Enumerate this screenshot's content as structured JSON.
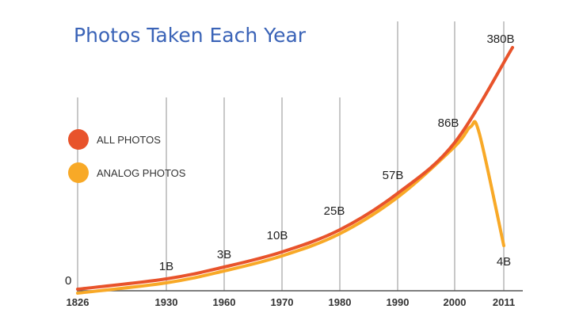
{
  "chart_data": {
    "type": "line",
    "title": "Photos Taken Each Year",
    "x": [
      1826,
      1930,
      1960,
      1970,
      1980,
      1990,
      2000,
      2011
    ],
    "x_tick_labels": [
      "1826",
      "1930",
      "1960",
      "1970",
      "1980",
      "1990",
      "2000",
      "2011"
    ],
    "series": [
      {
        "name": "ALL PHOTOS",
        "color": "#e8532b",
        "points": [
          {
            "x": 1826,
            "y": 0
          },
          {
            "x": 1930,
            "y": 1
          },
          {
            "x": 1960,
            "y": 3
          },
          {
            "x": 1970,
            "y": 10
          },
          {
            "x": 1980,
            "y": 25
          },
          {
            "x": 1990,
            "y": 57
          },
          {
            "x": 2000,
            "y": 86
          },
          {
            "x": 2011,
            "y": 380
          }
        ]
      },
      {
        "name": "ANALOG PHOTOS",
        "color": "#f8a927",
        "points": [
          {
            "x": 1826,
            "y": 0
          },
          {
            "x": 1930,
            "y": 1
          },
          {
            "x": 1960,
            "y": 3
          },
          {
            "x": 1970,
            "y": 10
          },
          {
            "x": 1980,
            "y": 25
          },
          {
            "x": 1990,
            "y": 57
          },
          {
            "x": 2000,
            "y": 86
          },
          {
            "x": 2011,
            "y": 4
          }
        ]
      }
    ],
    "data_labels": [
      "0",
      "1B",
      "3B",
      "10B",
      "25B",
      "57B",
      "86B",
      "380B",
      "4B"
    ],
    "legend_placement": "left",
    "grid": "vertical"
  }
}
